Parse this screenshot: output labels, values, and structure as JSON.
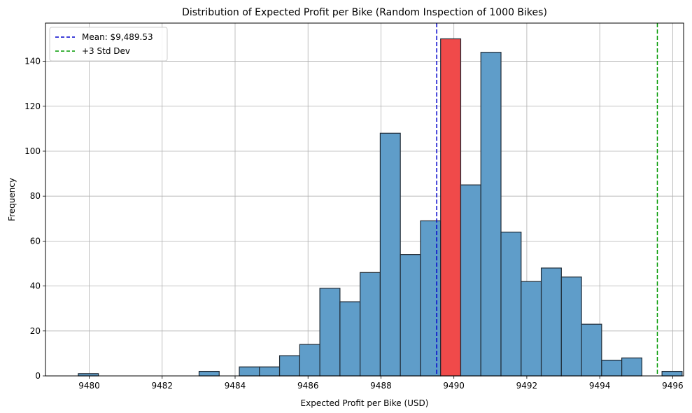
{
  "chart_data": {
    "type": "bar",
    "title": "Distribution of Expected Profit per Bike (Random Inspection of 1000 Bikes)",
    "xlabel": "Expected Profit per Bike (USD)",
    "ylabel": "Frequency",
    "xlim": [
      9478.8,
      9496.3
    ],
    "ylim": [
      0,
      157
    ],
    "xticks": [
      9480,
      9482,
      9484,
      9486,
      9488,
      9490,
      9492,
      9494,
      9496
    ],
    "yticks": [
      0,
      20,
      40,
      60,
      80,
      100,
      120,
      140
    ],
    "grid": true,
    "bin_start": 9479.7,
    "bin_width": 0.552,
    "values": [
      1,
      0,
      0,
      0,
      0,
      0,
      2,
      0,
      4,
      4,
      9,
      14,
      39,
      33,
      46,
      108,
      54,
      69,
      150,
      85,
      144,
      64,
      42,
      48,
      44,
      23,
      7,
      8,
      0,
      2
    ],
    "highlight_index": 18,
    "colors": {
      "bar": "#5f9dc9",
      "highlight": "#f04a4a",
      "edge": "#1f2a35",
      "mean_line": "#0000cc",
      "std_line": "#009900",
      "grid": "#b0b0b0"
    },
    "mean": 9489.53,
    "plus3std": 9495.58,
    "legend": {
      "placement": "top-left",
      "entries": [
        "Mean: $9,489.53",
        "+3 Std Dev"
      ]
    }
  }
}
